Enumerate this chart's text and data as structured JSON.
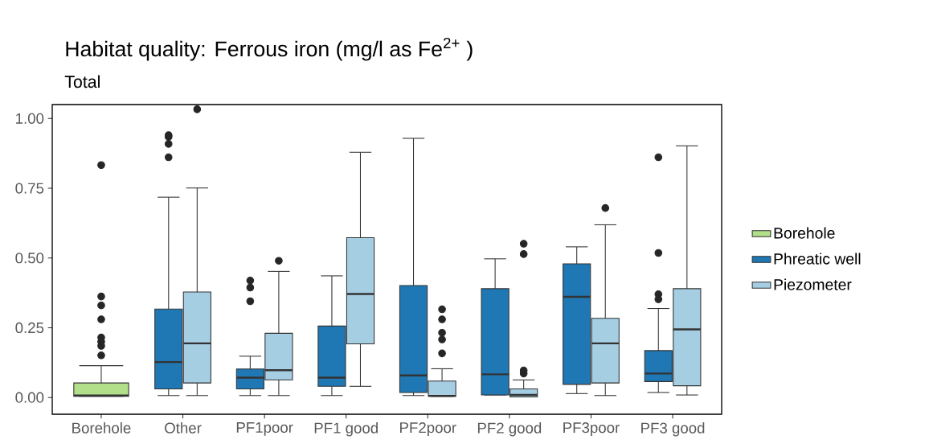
{
  "chart_data": {
    "type": "box",
    "title": "Habitat quality: Ferrous iron (mg/l as Fe$^{2+}$ )",
    "subtitle": "Total",
    "categories": [
      "Borehole",
      "Other",
      "PF1poor",
      "PF1 good",
      "PF2poor",
      "PF2 good",
      "PF3poor",
      "PF3 good"
    ],
    "ylim": [
      -0.06,
      1.05
    ],
    "yticks": [
      {
        "value": 0,
        "label": "0.00"
      },
      {
        "value": 0.25,
        "label": "0.25"
      },
      {
        "value": 0.5,
        "label": "0.50"
      },
      {
        "value": 0.75,
        "label": "0.75"
      },
      {
        "value": 1,
        "label": "1.00"
      }
    ],
    "legend": "right",
    "grid": false,
    "series": [
      {
        "name": "Borehole",
        "color": "#b2df8a",
        "boxes": [
          {
            "low": 0.004,
            "q1": 0.004,
            "median": 0.007,
            "q3": 0.052,
            "high": 0.114,
            "outliers": [
              0.833,
              0.362,
              0.33,
              0.28,
              0.215,
              0.2,
              0.185,
              0.151
            ]
          },
          null,
          null,
          null,
          null,
          null,
          null,
          null
        ]
      },
      {
        "name": "Phreatic well",
        "color": "#1f78b4",
        "boxes": [
          null,
          {
            "low": 0.007,
            "q1": 0.031,
            "median": 0.127,
            "q3": 0.317,
            "high": 0.718,
            "outliers": [
              0.94,
              0.934,
              0.909,
              0.861
            ]
          },
          {
            "low": 0.007,
            "q1": 0.031,
            "median": 0.071,
            "q3": 0.102,
            "high": 0.148,
            "outliers": [
              0.419,
              0.394,
              0.345
            ]
          },
          {
            "low": 0.007,
            "q1": 0.04,
            "median": 0.071,
            "q3": 0.256,
            "high": 0.436
          },
          {
            "low": 0.007,
            "q1": 0.018,
            "median": 0.079,
            "q3": 0.401,
            "high": 0.929
          },
          {
            "low": 0.009,
            "q1": 0.009,
            "median": 0.083,
            "q3": 0.39,
            "high": 0.497
          },
          {
            "low": 0.014,
            "q1": 0.047,
            "median": 0.361,
            "q3": 0.479,
            "high": 0.54
          },
          {
            "low": 0.018,
            "q1": 0.057,
            "median": 0.086,
            "q3": 0.168,
            "high": 0.319,
            "outliers": [
              0.861,
              0.518,
              0.37,
              0.352
            ]
          }
        ]
      },
      {
        "name": "Piezometer",
        "color": "#a6cee3",
        "boxes": [
          null,
          {
            "low": 0.007,
            "q1": 0.052,
            "median": 0.194,
            "q3": 0.378,
            "high": 0.751,
            "outliers": [
              1.033
            ]
          },
          {
            "low": 0.007,
            "q1": 0.063,
            "median": 0.098,
            "q3": 0.23,
            "high": 0.452,
            "outliers": [
              0.49
            ]
          },
          {
            "low": 0.04,
            "q1": 0.192,
            "median": 0.371,
            "q3": 0.573,
            "high": 0.879
          },
          {
            "low": 0.004,
            "q1": 0.004,
            "median": 0.006,
            "q3": 0.059,
            "high": 0.103,
            "outliers": [
              0.316,
              0.28,
              0.232,
              0.208,
              0.158
            ]
          },
          {
            "low": 0.002,
            "q1": 0.002,
            "median": 0.009,
            "q3": 0.031,
            "high": 0.063,
            "outliers": [
              0.097,
              0.086,
              0.551,
              0.514
            ]
          },
          {
            "low": 0.007,
            "q1": 0.052,
            "median": 0.194,
            "q3": 0.284,
            "high": 0.619,
            "outliers": [
              0.679
            ]
          },
          {
            "low": 0.009,
            "q1": 0.042,
            "median": 0.244,
            "q3": 0.39,
            "high": 0.902
          }
        ]
      }
    ]
  }
}
